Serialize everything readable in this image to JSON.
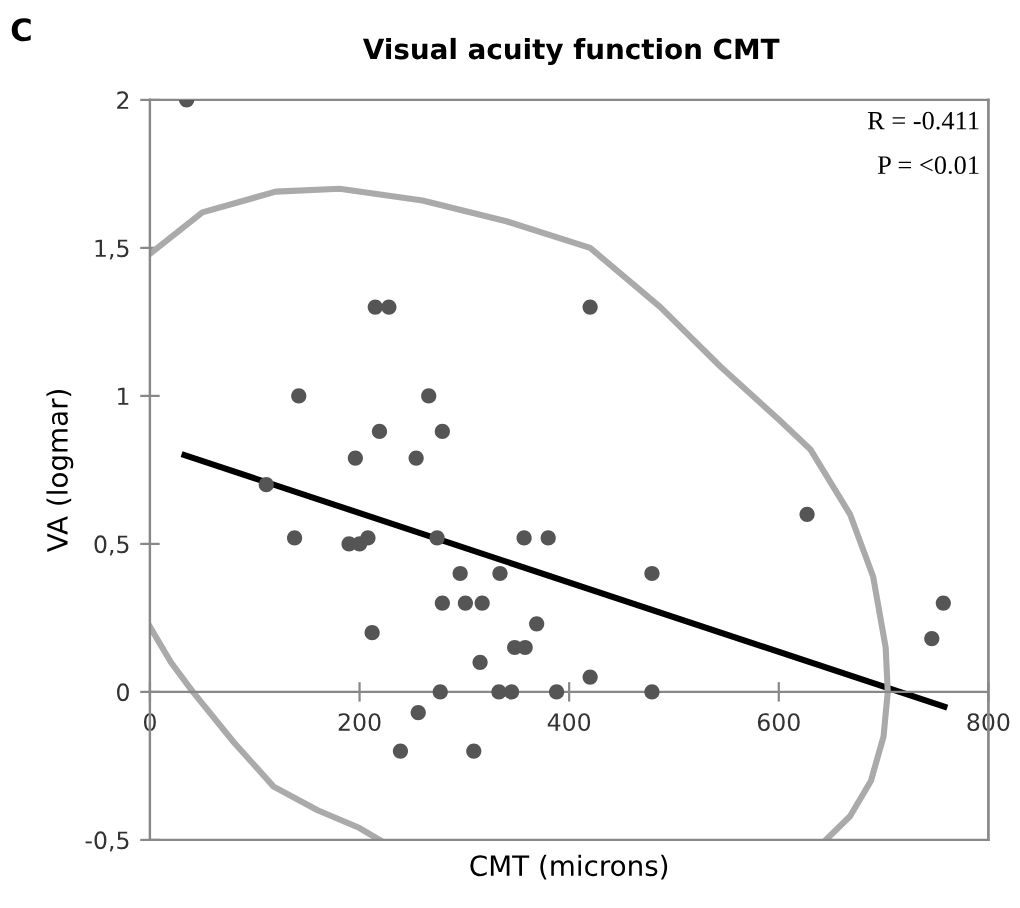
{
  "chart_data": {
    "type": "scatter",
    "title": "Visual acuity function CMT",
    "xlabel": "CMT (microns)",
    "ylabel": "VA (logmar)",
    "annotations": [
      "C",
      "R = -0.411",
      "P = <0.01"
    ],
    "xlim": [
      0,
      800
    ],
    "ylim": [
      -0.5,
      2
    ],
    "xticks": [
      0,
      200,
      400,
      600,
      800
    ],
    "yticks": [
      {
        "value": -0.5,
        "label": "-0,5"
      },
      0,
      {
        "value": 0.5,
        "label": "0,5"
      },
      1,
      {
        "value": 1.5,
        "label": "1,5"
      },
      2
    ],
    "grid": false,
    "series": [
      {
        "marker": "circle",
        "color": "#555555",
        "x": [
          35,
          215,
          228,
          420,
          142,
          266,
          219,
          279,
          196,
          254,
          111,
          138,
          190,
          200,
          208,
          274,
          357,
          380,
          296,
          334,
          279,
          301,
          317,
          369,
          348,
          358,
          212,
          315,
          420,
          277,
          333,
          345,
          388,
          256,
          239,
          309,
          627,
          479,
          479,
          757,
          746
        ],
        "values": [
          2.0,
          1.3,
          1.3,
          1.3,
          1.0,
          1.0,
          0.88,
          0.88,
          0.79,
          0.79,
          0.7,
          0.52,
          0.5,
          0.5,
          0.52,
          0.52,
          0.52,
          0.52,
          0.4,
          0.4,
          0.3,
          0.3,
          0.3,
          0.23,
          0.15,
          0.15,
          0.2,
          0.1,
          0.05,
          0.0,
          0.0,
          0.0,
          0.0,
          -0.07,
          -0.2,
          -0.2,
          0.6,
          0.4,
          0.0,
          0.3,
          0.18
        ]
      },
      {
        "type": "line",
        "color": "#000000",
        "x": [
          33,
          758
        ],
        "values": [
          0.8,
          -0.05
        ]
      },
      {
        "type": "line",
        "color": "#aaaaaa",
        "x": [
          0,
          50,
          120,
          181,
          260,
          340,
          420,
          487,
          544,
          600,
          630,
          668,
          690,
          702,
          704,
          700,
          688,
          668,
          645
        ],
        "values": [
          1.48,
          1.62,
          1.69,
          1.7,
          1.66,
          1.59,
          1.5,
          1.3,
          1.1,
          0.92,
          0.82,
          0.6,
          0.39,
          0.15,
          0.0,
          -0.15,
          -0.3,
          -0.42,
          -0.5
        ]
      },
      {
        "type": "line",
        "color": "#aaaaaa",
        "x": [
          0,
          20,
          41,
          80,
          118,
          160,
          200,
          219
        ],
        "values": [
          0.22,
          0.1,
          0.0,
          -0.17,
          -0.32,
          -0.4,
          -0.46,
          -0.5
        ]
      }
    ]
  }
}
